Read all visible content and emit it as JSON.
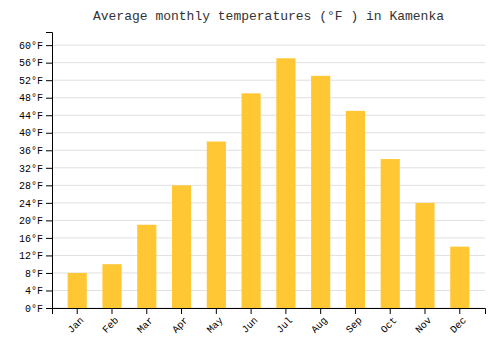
{
  "chart_data": {
    "type": "bar",
    "title": "Average monthly temperatures (°F ) in Kamenka",
    "categories": [
      "Jan",
      "Feb",
      "Mar",
      "Apr",
      "May",
      "Jun",
      "Jul",
      "Aug",
      "Sep",
      "Oct",
      "Nov",
      "Dec"
    ],
    "values": [
      8,
      10,
      19,
      28,
      38,
      49,
      57,
      53,
      45,
      34,
      24,
      14
    ],
    "color": "#FFC733",
    "ylim": [
      0,
      63
    ],
    "yticks": [
      {
        "value": 0,
        "label": "0°F"
      },
      {
        "value": 4,
        "label": "4°F"
      },
      {
        "value": 8,
        "label": "8°F"
      },
      {
        "value": 12,
        "label": "12°F"
      },
      {
        "value": 16,
        "label": "16°F"
      },
      {
        "value": 20,
        "label": "20°F"
      },
      {
        "value": 24,
        "label": "24°F"
      },
      {
        "value": 28,
        "label": "28°F"
      },
      {
        "value": 32,
        "label": "32°F"
      },
      {
        "value": 36,
        "label": "36°F"
      },
      {
        "value": 40,
        "label": "40°F"
      },
      {
        "value": 44,
        "label": "44°F"
      },
      {
        "value": 48,
        "label": "48°F"
      },
      {
        "value": 52,
        "label": "52°F"
      },
      {
        "value": 56,
        "label": "56°F"
      },
      {
        "value": 60,
        "label": "60°F"
      }
    ],
    "grid": true
  }
}
